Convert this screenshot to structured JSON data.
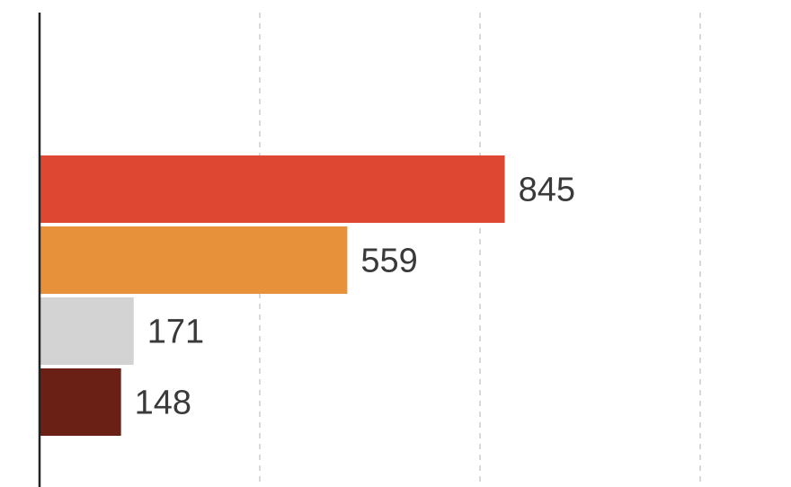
{
  "chart_data": {
    "type": "bar",
    "orientation": "horizontal",
    "title": "",
    "xlabel": "",
    "ylabel": "",
    "xlim": [
      0,
      1400
    ],
    "grid": true,
    "gridlines_at": [
      400,
      800,
      1200
    ],
    "show_tick_labels": false,
    "bars": [
      {
        "value": 845,
        "label": "845",
        "color": "#de4731"
      },
      {
        "value": 559,
        "label": "559",
        "color": "#e8913b"
      },
      {
        "value": 171,
        "label": "171",
        "color": "#d3d3d3"
      },
      {
        "value": 148,
        "label": "148",
        "color": "#6b2016"
      }
    ]
  }
}
